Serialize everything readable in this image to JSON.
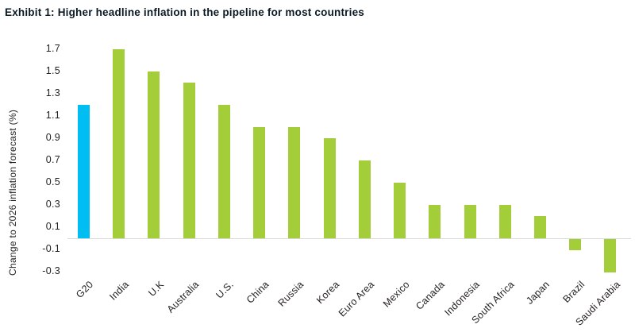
{
  "title": "Exhibit 1: Higher headline inflation in the pipeline for most countries",
  "chart_data": {
    "type": "bar",
    "title": "Exhibit 1: Higher headline inflation in the pipeline for most countries",
    "categories": [
      "G20",
      "India",
      "U.K",
      "Australia",
      "U.S.",
      "China",
      "Russia",
      "Korea",
      "Euro Area",
      "Mexico",
      "Canada",
      "Indonesia",
      "South Africa",
      "Japan",
      "Brazil",
      "Saudi Arabia"
    ],
    "values": [
      1.2,
      1.7,
      1.5,
      1.4,
      1.2,
      1.0,
      1.0,
      0.9,
      0.7,
      0.5,
      0.3,
      0.3,
      0.3,
      0.2,
      -0.1,
      -0.3
    ],
    "xlabel": "",
    "ylabel": "Change to 2026 inflation forecast (%)",
    "ylim": [
      -0.4,
      1.8
    ],
    "yticks": [
      "1.7",
      "1.5",
      "1.3",
      "1.1",
      "0.9",
      "0.7",
      "0.5",
      "0.3",
      "0.1",
      "-0.1",
      "-0.3"
    ],
    "grid": false,
    "legend": "none",
    "highlight_index": 0,
    "colors": {
      "highlight_bar": "#00bdf2",
      "default_bar": "#a4ce39"
    }
  },
  "colors": {
    "title_text": "#0c1a24",
    "axis_text": "#231f20",
    "baseline": "#d9d9d9"
  }
}
